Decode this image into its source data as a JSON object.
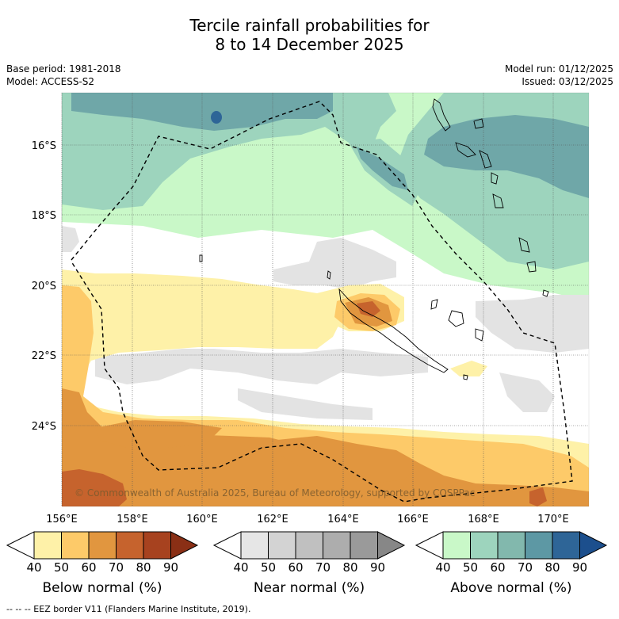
{
  "title": {
    "line1": "Tercile rainfall probabilities for",
    "line2": "8 to 14 December 2025"
  },
  "meta": {
    "base_period": "Base period: 1981-2018",
    "model": "Model: ACCESS-S2",
    "model_run": "Model run: 01/12/2025",
    "issued": "Issued: 03/12/2025"
  },
  "map": {
    "lon_ticks": [
      "156°E",
      "158°E",
      "160°E",
      "162°E",
      "164°E",
      "166°E",
      "168°E",
      "170°E"
    ],
    "lat_ticks": [
      "16°S",
      "18°S",
      "20°S",
      "22°S",
      "24°S"
    ],
    "copyright": "© Commonwealth of Australia 2025, Bureau of Meteorology, supported by COSPPac"
  },
  "colorbars": [
    {
      "title": "Below normal (%)",
      "labels": [
        "40",
        "50",
        "60",
        "70",
        "80",
        "90"
      ],
      "colors": [
        "#fef1a8",
        "#fdca69",
        "#e1963f",
        "#c6632d",
        "#a7421f",
        "#8a2f15"
      ]
    },
    {
      "title": "Near normal (%)",
      "labels": [
        "40",
        "50",
        "60",
        "70",
        "80",
        "90"
      ],
      "colors": [
        "#e6e6e6",
        "#d3d3d3",
        "#c0c0c0",
        "#adadad",
        "#9a9a9a",
        "#878787"
      ]
    },
    {
      "title": "Above normal (%)",
      "labels": [
        "40",
        "50",
        "60",
        "70",
        "80",
        "90"
      ],
      "colors": [
        "#c9f8c8",
        "#9dd4bd",
        "#82b8ad",
        "#5d98a4",
        "#2e6597",
        "#1c4f8d"
      ]
    }
  ],
  "footnote": "-- -- -- EEZ border V11 (Flanders Marine Institute, 2019)."
}
